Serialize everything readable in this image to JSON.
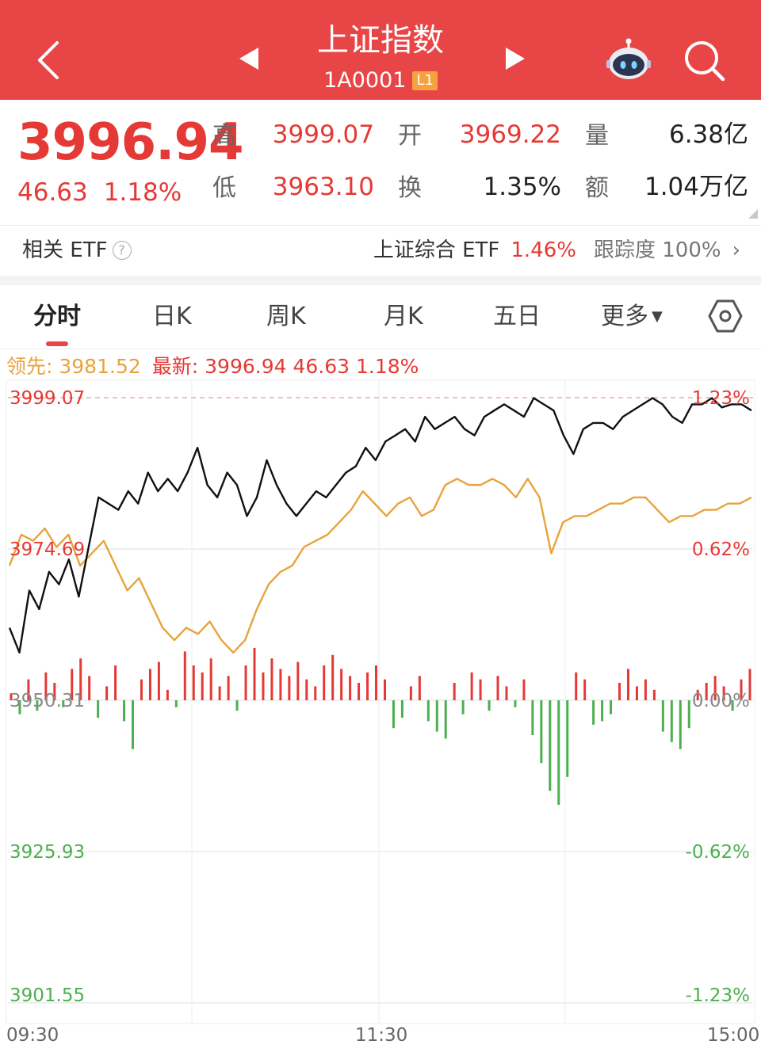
{
  "header": {
    "title": "上证指数",
    "code": "1A0001",
    "level_badge": "L1",
    "bg_color": "#e84646"
  },
  "quote": {
    "price": "3996.94",
    "change": "46.63",
    "change_pct": "1.18%",
    "high_label": "高",
    "high": "3999.07",
    "open_label": "开",
    "open": "3969.22",
    "volume_label": "量",
    "volume": "6.38亿",
    "low_label": "低",
    "low": "3963.10",
    "turnover_label": "换",
    "turnover": "1.35%",
    "amount_label": "额",
    "amount": "1.04万亿"
  },
  "etf": {
    "label": "相关 ETF",
    "name": "上证综合 ETF",
    "pct": "1.46%",
    "track_label": "跟踪度",
    "track_value": "100%"
  },
  "tabs": [
    {
      "label": "分时",
      "active": true
    },
    {
      "label": "日K"
    },
    {
      "label": "周K"
    },
    {
      "label": "月K"
    },
    {
      "label": "五日"
    },
    {
      "label": "更多"
    }
  ],
  "legend": {
    "leading_label": "领先: 3981.52",
    "latest_label": "最新: 3996.94",
    "latest_change": "46.63",
    "latest_pct": "1.18%"
  },
  "colors": {
    "up": "#e53935",
    "down": "#4caf50",
    "price_line": "#111111",
    "leading_line": "#e8a33c"
  },
  "chart_data": {
    "type": "line",
    "x_ticks": [
      "09:30",
      "11:30",
      "15:00"
    ],
    "y_left_ticks": [
      "3999.07",
      "3974.69",
      "3950.31",
      "3925.93",
      "3901.55"
    ],
    "y_right_ticks": [
      "1.23%",
      "0.62%",
      "0.00%",
      "-0.62%",
      "-1.23%"
    ],
    "ylim": [
      3901.55,
      3999.07
    ],
    "prev_close": 3950.31,
    "series": [
      {
        "name": "最新",
        "values": [
          3962,
          3958,
          3968,
          3965,
          3971,
          3969,
          3973,
          3967,
          3975,
          3983,
          3982,
          3981,
          3984,
          3982,
          3987,
          3984,
          3986,
          3984,
          3987,
          3991,
          3985,
          3983,
          3987,
          3985,
          3980,
          3983,
          3989,
          3985,
          3982,
          3980,
          3982,
          3984,
          3983,
          3985,
          3987,
          3988,
          3991,
          3989,
          3992,
          3993,
          3994,
          3992,
          3996,
          3994,
          3995,
          3996,
          3994,
          3993,
          3996,
          3997,
          3998,
          3997,
          3996,
          3999,
          3998,
          3997,
          3993,
          3990,
          3994,
          3995,
          3995,
          3994,
          3996,
          3997,
          3998,
          3999,
          3998,
          3996,
          3995,
          3998,
          3998,
          3999,
          3997.5,
          3998,
          3998,
          3997
        ]
      },
      {
        "name": "领先",
        "values": [
          3972,
          3977,
          3976,
          3978,
          3975,
          3977,
          3972,
          3974,
          3976,
          3972,
          3968,
          3970,
          3966,
          3962,
          3960,
          3962,
          3961,
          3963,
          3960,
          3958,
          3960,
          3965,
          3969,
          3971,
          3972,
          3975,
          3976,
          3977,
          3979,
          3981,
          3984,
          3982,
          3980,
          3982,
          3983,
          3980,
          3981,
          3985,
          3986,
          3985,
          3985,
          3986,
          3985,
          3983,
          3986,
          3983,
          3974,
          3979,
          3980,
          3980,
          3981,
          3982,
          3982,
          3983,
          3983,
          3981,
          3979,
          3980,
          3980,
          3981,
          3981,
          3982,
          3982,
          3983
        ]
      }
    ],
    "volume_bars": [
      2,
      -4,
      6,
      -3,
      8,
      5,
      -2,
      9,
      12,
      7,
      -5,
      4,
      10,
      -6,
      -14,
      6,
      9,
      11,
      3,
      -2,
      14,
      10,
      8,
      12,
      4,
      7,
      -3,
      10,
      15,
      8,
      12,
      9,
      7,
      11,
      6,
      4,
      10,
      13,
      9,
      7,
      5,
      8,
      10,
      6,
      -8,
      -5,
      4,
      7,
      -6,
      -9,
      -11,
      5,
      -4,
      8,
      6,
      -3,
      7,
      4,
      -2,
      6,
      -10,
      -18,
      -26,
      -30,
      -22,
      8,
      6,
      -7,
      -6,
      -4,
      5,
      9,
      4,
      6,
      3,
      -9,
      -12,
      -14,
      -8,
      3,
      5,
      7,
      4,
      -3,
      6,
      9
    ]
  }
}
